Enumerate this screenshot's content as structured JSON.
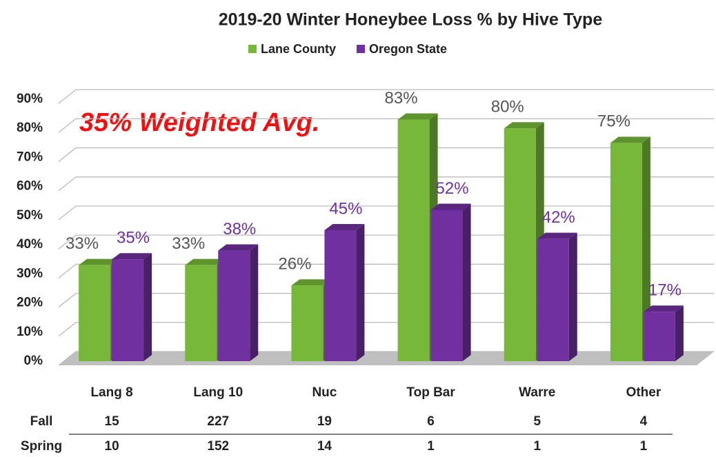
{
  "chart_data": {
    "type": "bar",
    "title": "2019-20 Winter Honeybee Loss % by Hive Type",
    "annotation": "35% Weighted Avg.",
    "categories": [
      "Lang 8",
      "Lang 10",
      "Nuc",
      "Top Bar",
      "Warre",
      "Other"
    ],
    "series": [
      {
        "name": "Lane County",
        "color": "#77b83a",
        "values": [
          33,
          33,
          26,
          83,
          80,
          75
        ],
        "value_labels": [
          "33%",
          "33%",
          "26%",
          "83%",
          "80%",
          "75%"
        ]
      },
      {
        "name": "Oregon State",
        "color": "#7030a0",
        "values": [
          35,
          38,
          45,
          52,
          42,
          17
        ],
        "value_labels": [
          "35%",
          "38%",
          "45%",
          "52%",
          "42%",
          "17%"
        ]
      }
    ],
    "ylim": [
      0,
      90
    ],
    "yticks": [
      {
        "value": 0,
        "label": "0%"
      },
      {
        "value": 10,
        "label": "10%"
      },
      {
        "value": 20,
        "label": "20%"
      },
      {
        "value": 30,
        "label": "30%"
      },
      {
        "value": 40,
        "label": "40%"
      },
      {
        "value": 50,
        "label": "50%"
      },
      {
        "value": 60,
        "label": "60%"
      },
      {
        "value": 70,
        "label": "70%"
      },
      {
        "value": 80,
        "label": "80%"
      },
      {
        "value": 90,
        "label": "90%"
      }
    ],
    "grid": true,
    "legend": "top",
    "table": {
      "rows": [
        {
          "label": "Fall",
          "values": [
            15,
            227,
            19,
            6,
            5,
            4
          ]
        },
        {
          "label": "Spring",
          "values": [
            10,
            152,
            14,
            1,
            1,
            1
          ]
        }
      ]
    }
  }
}
